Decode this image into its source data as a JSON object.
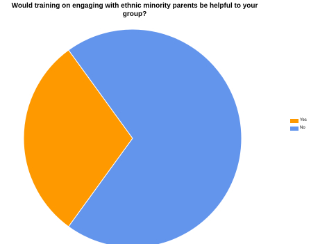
{
  "chart_data": {
    "type": "pie",
    "title": "Would training on engaging with ethnic minority parents be helpful to your group?",
    "slices": [
      {
        "label": "Yes",
        "value": 30,
        "color": "#ff9900"
      },
      {
        "label": "No",
        "value": 70,
        "color": "#6495ed"
      }
    ],
    "legend_position": "right"
  }
}
